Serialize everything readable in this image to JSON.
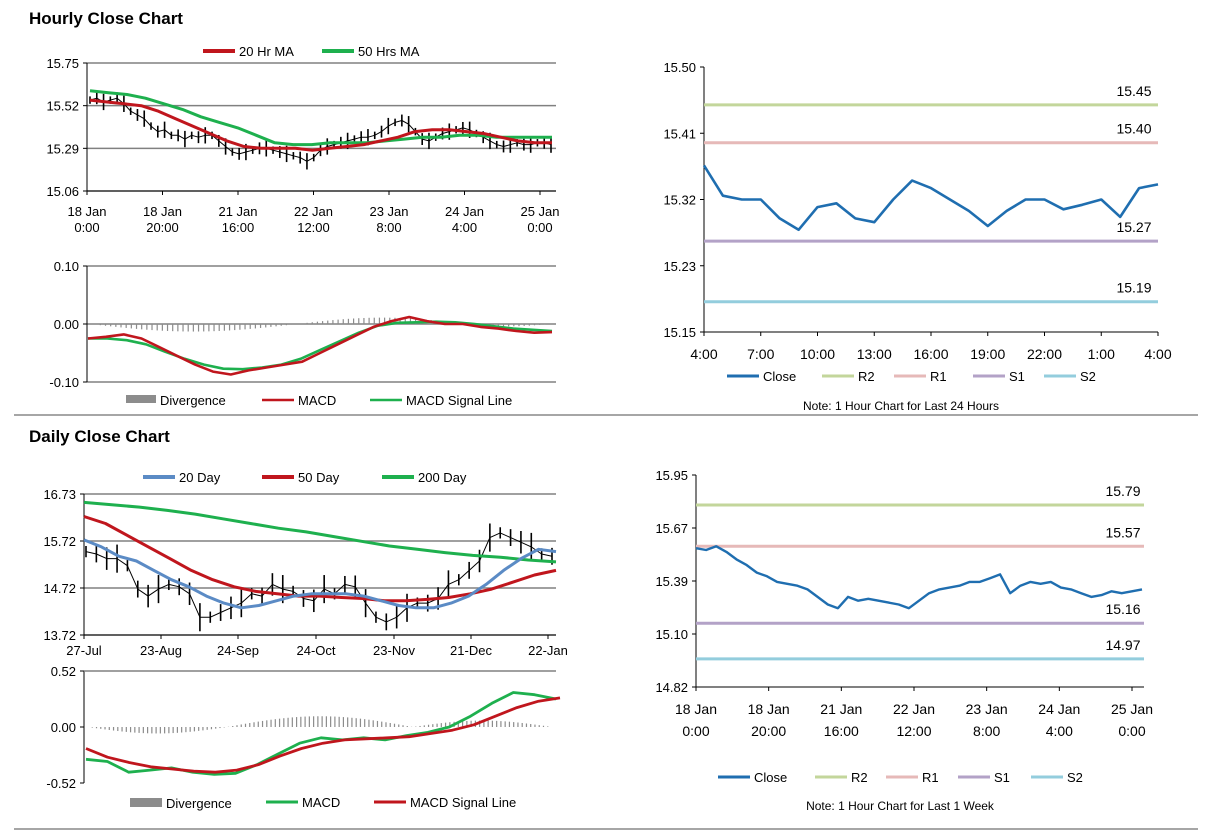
{
  "sections": {
    "hourly_title": "Hourly Close Chart",
    "daily_title": "Daily Close Chart"
  },
  "colors": {
    "close": "#1f6eb0",
    "ma_red": "#c0161d",
    "ma_green": "#1eb04e",
    "ma_blue": "#5b8bc5",
    "r2": "#c3d69b",
    "r1": "#e6b9b8",
    "s1": "#b3a2c7",
    "s2": "#93cddd",
    "divergence": "#8c8c8c",
    "grid": "#808080"
  },
  "chart_data": [
    {
      "id": "hourly_price",
      "type": "line",
      "title": "Hourly Close Chart",
      "yticks": [
        "15.75",
        "15.52",
        "15.29",
        "15.06"
      ],
      "ylim": [
        15.06,
        15.75
      ],
      "xticks": [
        [
          "18 Jan",
          "0:00"
        ],
        [
          "18 Jan",
          "20:00"
        ],
        [
          "21 Jan",
          "16:00"
        ],
        [
          "22 Jan",
          "12:00"
        ],
        [
          "23 Jan",
          "8:00"
        ],
        [
          "24 Jan",
          "4:00"
        ],
        [
          "25 Jan",
          "0:00"
        ]
      ],
      "legend": [
        "20 Hr MA",
        "50 Hrs MA"
      ],
      "series": [
        {
          "name": "Price",
          "values": [
            15.55,
            15.56,
            15.54,
            15.55,
            15.56,
            15.53,
            15.49,
            15.47,
            15.45,
            15.41,
            15.38,
            15.39,
            15.36,
            15.36,
            15.34,
            15.36,
            15.35,
            15.36,
            15.36,
            15.33,
            15.3,
            15.27,
            15.26,
            15.27,
            15.28,
            15.29,
            15.29,
            15.28,
            15.27,
            15.26,
            15.25,
            15.24,
            15.22,
            15.24,
            15.28,
            15.3,
            15.31,
            15.32,
            15.33,
            15.34,
            15.35,
            15.35,
            15.36,
            15.38,
            15.41,
            15.43,
            15.44,
            15.42,
            15.38,
            15.34,
            15.33,
            15.35,
            15.37,
            15.38,
            15.39,
            15.4,
            15.39,
            15.37,
            15.35,
            15.33,
            15.31,
            15.3,
            15.31,
            15.32,
            15.31,
            15.31,
            15.32,
            15.32,
            15.31
          ]
        },
        {
          "name": "20 Hr MA",
          "values": [
            15.55,
            15.54,
            15.53,
            15.52,
            15.49,
            15.45,
            15.41,
            15.37,
            15.33,
            15.3,
            15.29,
            15.29,
            15.29,
            15.28,
            15.29,
            15.3,
            15.31,
            15.33,
            15.35,
            15.38,
            15.39,
            15.39,
            15.38,
            15.37,
            15.35,
            15.33,
            15.32,
            15.32
          ]
        },
        {
          "name": "50 Hrs MA",
          "values": [
            15.6,
            15.59,
            15.58,
            15.56,
            15.53,
            15.5,
            15.46,
            15.43,
            15.4,
            15.36,
            15.32,
            15.31,
            15.31,
            15.32,
            15.32,
            15.32,
            15.33,
            15.34,
            15.35,
            15.35,
            15.36,
            15.36,
            15.35,
            15.35,
            15.35,
            15.35
          ]
        }
      ]
    },
    {
      "id": "hourly_macd",
      "type": "line",
      "yticks": [
        "0.10",
        "0.00",
        "-0.10"
      ],
      "ylim": [
        -0.1,
        0.1
      ],
      "legend": [
        "Divergence",
        "MACD",
        "MACD Signal Line"
      ],
      "series": [
        {
          "name": "MACD",
          "values": [
            -0.025,
            -0.022,
            -0.018,
            -0.025,
            -0.04,
            -0.055,
            -0.07,
            -0.082,
            -0.087,
            -0.08,
            -0.075,
            -0.07,
            -0.065,
            -0.05,
            -0.035,
            -0.02,
            -0.005,
            0.005,
            0.012,
            0.005,
            0.0,
            0.0,
            -0.005,
            -0.008,
            -0.012,
            -0.015,
            -0.014
          ]
        },
        {
          "name": "MACD Signal Line",
          "values": [
            -0.025,
            -0.025,
            -0.028,
            -0.035,
            -0.048,
            -0.06,
            -0.07,
            -0.077,
            -0.078,
            -0.075,
            -0.07,
            -0.06,
            -0.045,
            -0.03,
            -0.015,
            -0.003,
            0.002,
            0.003,
            0.004,
            0.003,
            0.0,
            -0.004,
            -0.008,
            -0.01,
            -0.012
          ]
        }
      ]
    },
    {
      "id": "hourly_24h",
      "type": "line",
      "yticks": [
        "15.50",
        "15.41",
        "15.32",
        "15.23",
        "15.15"
      ],
      "ylim": [
        15.15,
        15.5
      ],
      "xticks": [
        "4:00",
        "7:00",
        "10:00",
        "13:00",
        "16:00",
        "19:00",
        "22:00",
        "1:00",
        "4:00"
      ],
      "levels": [
        {
          "name": "R2",
          "value": 15.45,
          "label": "15.45"
        },
        {
          "name": "R1",
          "value": 15.4,
          "label": "15.40"
        },
        {
          "name": "S1",
          "value": 15.27,
          "label": "15.27"
        },
        {
          "name": "S2",
          "value": 15.19,
          "label": "15.19"
        }
      ],
      "legend": [
        "Close",
        "R2",
        "R1",
        "S1",
        "S2"
      ],
      "note": "Note: 1 Hour Chart for Last 24 Hours",
      "series": [
        {
          "name": "Close",
          "values": [
            15.37,
            15.33,
            15.325,
            15.325,
            15.3,
            15.285,
            15.315,
            15.32,
            15.3,
            15.295,
            15.325,
            15.35,
            15.34,
            15.325,
            15.31,
            15.29,
            15.31,
            15.325,
            15.325,
            15.312,
            15.318,
            15.325,
            15.302,
            15.34,
            15.345
          ]
        }
      ]
    },
    {
      "id": "daily_price",
      "type": "line",
      "title": "Daily Close Chart",
      "yticks": [
        "16.73",
        "15.72",
        "14.72",
        "13.72"
      ],
      "ylim": [
        13.72,
        16.73
      ],
      "xticks": [
        "27-Jul",
        "23-Aug",
        "24-Sep",
        "24-Oct",
        "23-Nov",
        "21-Dec",
        "22-Jan"
      ],
      "legend": [
        "20 Day",
        "50 Day",
        "200 Day"
      ],
      "series": [
        {
          "name": "Price",
          "values": [
            15.5,
            15.45,
            15.35,
            15.35,
            15.2,
            14.7,
            14.55,
            14.7,
            14.8,
            14.75,
            14.6,
            14.1,
            14.1,
            14.2,
            14.3,
            14.4,
            14.6,
            14.55,
            14.8,
            14.7,
            14.65,
            14.5,
            14.45,
            14.7,
            14.6,
            14.8,
            14.75,
            14.4,
            14.1,
            14.0,
            14.1,
            14.3,
            14.4,
            14.4,
            14.5,
            14.8,
            14.9,
            15.1,
            15.3,
            15.8,
            15.9,
            15.8,
            15.7,
            15.6,
            15.45,
            15.4
          ]
        },
        {
          "name": "20 Day",
          "values": [
            15.75,
            15.6,
            15.4,
            15.3,
            15.1,
            14.9,
            14.75,
            14.55,
            14.4,
            14.3,
            14.35,
            14.45,
            14.55,
            14.6,
            14.6,
            14.6,
            14.55,
            14.45,
            14.35,
            14.3,
            14.3,
            14.4,
            14.55,
            14.8,
            15.1,
            15.35,
            15.55,
            15.5
          ]
        },
        {
          "name": "50 Day",
          "values": [
            16.25,
            16.1,
            15.85,
            15.6,
            15.35,
            15.1,
            14.9,
            14.75,
            14.65,
            14.6,
            14.55,
            14.55,
            14.52,
            14.5,
            14.45,
            14.45,
            14.48,
            14.52,
            14.6,
            14.7,
            14.85,
            15.0,
            15.1
          ]
        },
        {
          "name": "200 Day",
          "values": [
            16.55,
            16.5,
            16.45,
            16.38,
            16.3,
            16.2,
            16.1,
            16.0,
            15.92,
            15.82,
            15.72,
            15.62,
            15.55,
            15.48,
            15.42,
            15.38,
            15.32,
            15.28
          ]
        }
      ]
    },
    {
      "id": "daily_macd",
      "type": "line",
      "yticks": [
        "0.52",
        "0.00",
        "-0.52"
      ],
      "ylim": [
        -0.52,
        0.52
      ],
      "legend": [
        "Divergence",
        "MACD",
        "MACD Signal Line"
      ],
      "series": [
        {
          "name": "MACD",
          "values": [
            -0.3,
            -0.32,
            -0.42,
            -0.4,
            -0.38,
            -0.42,
            -0.44,
            -0.43,
            -0.35,
            -0.25,
            -0.15,
            -0.1,
            -0.12,
            -0.1,
            -0.12,
            -0.08,
            -0.05,
            0.0,
            0.1,
            0.22,
            0.32,
            0.3,
            0.26
          ]
        },
        {
          "name": "MACD Signal Line",
          "values": [
            -0.2,
            -0.28,
            -0.33,
            -0.37,
            -0.39,
            -0.41,
            -0.42,
            -0.4,
            -0.35,
            -0.27,
            -0.2,
            -0.15,
            -0.12,
            -0.11,
            -0.1,
            -0.09,
            -0.06,
            -0.03,
            0.02,
            0.1,
            0.18,
            0.24,
            0.27
          ]
        }
      ]
    },
    {
      "id": "daily_week",
      "type": "line",
      "yticks": [
        "15.95",
        "15.67",
        "15.39",
        "15.10",
        "14.82"
      ],
      "ylim": [
        14.82,
        15.95
      ],
      "xticks": [
        [
          "18 Jan",
          "0:00"
        ],
        [
          "18 Jan",
          "20:00"
        ],
        [
          "21 Jan",
          "16:00"
        ],
        [
          "22 Jan",
          "12:00"
        ],
        [
          "23 Jan",
          "8:00"
        ],
        [
          "24 Jan",
          "4:00"
        ],
        [
          "25 Jan",
          "0:00"
        ]
      ],
      "levels": [
        {
          "name": "R2",
          "value": 15.79,
          "label": "15.79"
        },
        {
          "name": "R1",
          "value": 15.57,
          "label": "15.57"
        },
        {
          "name": "S1",
          "value": 15.16,
          "label": "15.16"
        },
        {
          "name": "S2",
          "value": 14.97,
          "label": "14.97"
        }
      ],
      "legend": [
        "Close",
        "R2",
        "R1",
        "S1",
        "S2"
      ],
      "note": "Note: 1 Hour Chart for Last 1 Week",
      "series": [
        {
          "name": "Close",
          "values": [
            15.56,
            15.55,
            15.57,
            15.54,
            15.5,
            15.47,
            15.43,
            15.41,
            15.38,
            15.37,
            15.36,
            15.34,
            15.3,
            15.26,
            15.24,
            15.3,
            15.28,
            15.29,
            15.28,
            15.27,
            15.26,
            15.24,
            15.28,
            15.32,
            15.34,
            15.35,
            15.36,
            15.38,
            15.38,
            15.4,
            15.42,
            15.32,
            15.36,
            15.38,
            15.37,
            15.38,
            15.35,
            15.34,
            15.32,
            15.3,
            15.31,
            15.33,
            15.32,
            15.33,
            15.34
          ]
        }
      ]
    }
  ]
}
